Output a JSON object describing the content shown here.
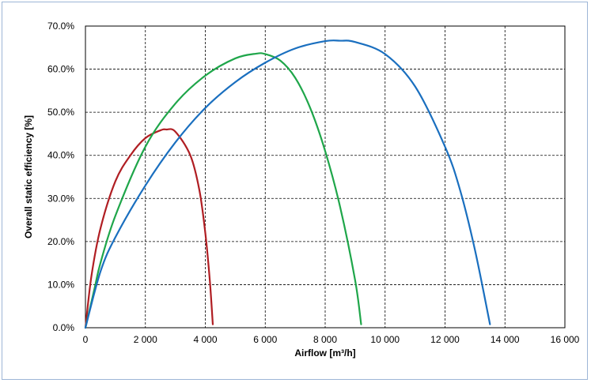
{
  "chart_data": {
    "type": "line",
    "title": "",
    "xlabel": "Airflow [m³/h]",
    "ylabel": "Overall static efficiency [%]",
    "xlim": [
      0,
      16000
    ],
    "ylim": [
      0,
      70
    ],
    "x_ticks": [
      0,
      2000,
      4000,
      6000,
      8000,
      10000,
      12000,
      14000,
      16000
    ],
    "x_tick_labels": [
      "0",
      "2 000",
      "4 000",
      "6 000",
      "8 000",
      "10 000",
      "12 000",
      "14 000",
      "16 000"
    ],
    "y_ticks": [
      0,
      10,
      20,
      30,
      40,
      50,
      60,
      70
    ],
    "y_tick_labels": [
      "0.0%",
      "10.0%",
      "20.0%",
      "30.0%",
      "40.0%",
      "50.0%",
      "60.0%",
      "70.0%"
    ],
    "grid": true,
    "series": [
      {
        "color": "#b01e23",
        "x": [
          0,
          200,
          500,
          1000,
          1500,
          2000,
          2500,
          2700,
          3000,
          3500,
          3800,
          4000,
          4150,
          4250
        ],
        "y": [
          0,
          12,
          23,
          34,
          40,
          44,
          45.8,
          46,
          45.5,
          40,
          32,
          22,
          11,
          0.8
        ]
      },
      {
        "color": "#1fa64a",
        "x": [
          0,
          300,
          500,
          1000,
          2000,
          3000,
          4000,
          5000,
          5700,
          6000,
          6500,
          7000,
          7500,
          8000,
          8500,
          9000,
          9200
        ],
        "y": [
          0,
          9,
          15,
          26,
          42,
          52,
          58.5,
          62.5,
          63.6,
          63.5,
          62,
          58,
          51,
          41,
          28,
          11,
          0.8
        ]
      },
      {
        "color": "#1a6fbf",
        "x": [
          0,
          500,
          1000,
          2000,
          3000,
          4000,
          5000,
          6000,
          7000,
          8000,
          8500,
          9000,
          10000,
          11000,
          12000,
          12500,
          13000,
          13500
        ],
        "y": [
          0,
          13,
          21,
          33,
          43,
          51,
          57,
          61.5,
          64.8,
          66.5,
          66.6,
          66.3,
          63.5,
          56,
          42,
          32,
          18,
          0.8
        ]
      }
    ]
  }
}
